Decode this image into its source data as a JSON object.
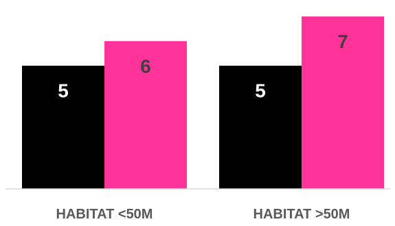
{
  "chart_data": {
    "type": "bar",
    "categories": [
      "HABITAT <50M",
      "HABITAT >50M"
    ],
    "series": [
      {
        "values": [
          5,
          5
        ],
        "color": "#000000",
        "label_color": "#ffffff"
      },
      {
        "values": [
          6,
          7
        ],
        "color": "#ff3399",
        "label_color": "#404040"
      }
    ],
    "title": "",
    "xlabel": "",
    "ylabel": "",
    "ylim": [
      0,
      7.5
    ],
    "grid": false,
    "legend": "none",
    "data_labels": true
  },
  "colors": {
    "axis_line": "#d9d9d9",
    "category_label": "#595959"
  }
}
